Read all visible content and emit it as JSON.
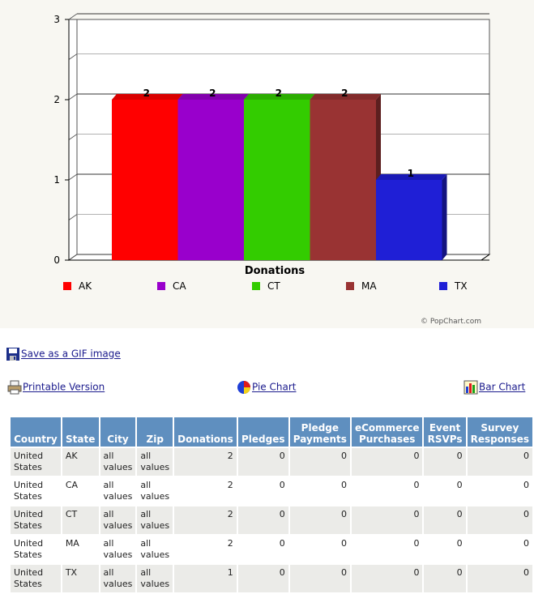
{
  "chart_data": {
    "type": "bar",
    "categories": [
      "AK",
      "CA",
      "CT",
      "MA",
      "TX"
    ],
    "values": [
      2,
      2,
      2,
      2,
      1
    ],
    "colors": [
      "#ff0000",
      "#9900cc",
      "#33cc00",
      "#993333",
      "#1f1fd6"
    ],
    "xlabel": "Donations",
    "ylim": [
      0,
      3
    ],
    "yticks": [
      "0",
      "1",
      "2",
      "3"
    ],
    "grid": true,
    "legend": [
      "AK",
      "CA",
      "CT",
      "MA",
      "TX"
    ],
    "legend_position": "bottom",
    "credit": "© PopChart.com"
  },
  "links": {
    "save_gif": "Save as a GIF image",
    "printable": "Printable Version",
    "pie_chart": "Pie Chart",
    "bar_chart": "Bar Chart"
  },
  "table": {
    "headers": [
      "Country",
      "State",
      "City",
      "Zip",
      "Donations",
      "Pledges",
      "Pledge Payments",
      "eCommerce Purchases",
      "Event RSVPs",
      "Survey Responses"
    ],
    "rows": [
      [
        "United States",
        "AK",
        "all values",
        "all values",
        "2",
        "0",
        "0",
        "0",
        "0",
        "0"
      ],
      [
        "United States",
        "CA",
        "all values",
        "all values",
        "2",
        "0",
        "0",
        "0",
        "0",
        "0"
      ],
      [
        "United States",
        "CT",
        "all values",
        "all values",
        "2",
        "0",
        "0",
        "0",
        "0",
        "0"
      ],
      [
        "United States",
        "MA",
        "all values",
        "all values",
        "2",
        "0",
        "0",
        "0",
        "0",
        "0"
      ],
      [
        "United States",
        "TX",
        "all values",
        "all values",
        "1",
        "0",
        "0",
        "0",
        "0",
        "0"
      ]
    ]
  }
}
